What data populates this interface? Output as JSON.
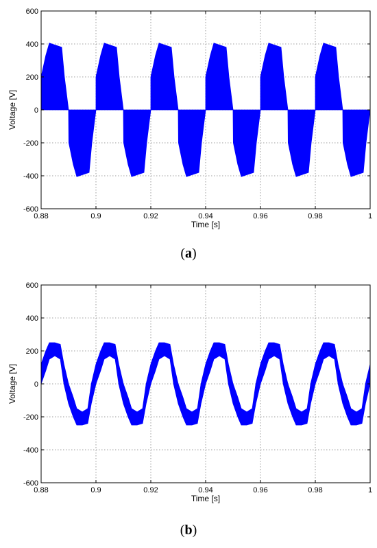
{
  "chart_data": [
    {
      "type": "area",
      "panel_label": "a",
      "xlabel": "Time [s]",
      "ylabel": "Voltage [V]",
      "xlim": [
        0.88,
        1.0
      ],
      "ylim": [
        -600,
        600
      ],
      "xticks": [
        "0.88",
        "0.9",
        "0.92",
        "0.94",
        "0.96",
        "0.98",
        "1"
      ],
      "yticks": [
        "-600",
        "-400",
        "-200",
        "0",
        "200",
        "400",
        "600"
      ],
      "grid": true,
      "color": "#0000ff",
      "period": 0.02,
      "phase_start": 0.88,
      "series": [
        {
          "values": [
            {
              "t": 0.0,
              "lo": 0,
              "hi": 200
            },
            {
              "t": 0.0017,
              "lo": 0,
              "hi": 330
            },
            {
              "t": 0.003,
              "lo": 0,
              "hi": 405
            },
            {
              "t": 0.0075,
              "lo": 0,
              "hi": 380
            },
            {
              "t": 0.0085,
              "lo": 0,
              "hi": 200
            },
            {
              "t": 0.01,
              "lo": 0,
              "hi": 0
            },
            {
              "t": 0.0101,
              "lo": -200,
              "hi": 0
            },
            {
              "t": 0.0117,
              "lo": -330,
              "hi": 0
            },
            {
              "t": 0.013,
              "lo": -405,
              "hi": 0
            },
            {
              "t": 0.0175,
              "lo": -380,
              "hi": 0
            },
            {
              "t": 0.0185,
              "lo": -200,
              "hi": 0
            },
            {
              "t": 0.02,
              "lo": 0,
              "hi": 0
            }
          ]
        }
      ]
    },
    {
      "type": "area",
      "panel_label": "b",
      "xlabel": "Time [s]",
      "ylabel": "Voltage [V]",
      "xlim": [
        0.88,
        1.0
      ],
      "ylim": [
        -600,
        600
      ],
      "xticks": [
        "0.88",
        "0.9",
        "0.92",
        "0.94",
        "0.96",
        "0.98",
        "1"
      ],
      "yticks": [
        "-600",
        "-400",
        "-200",
        "0",
        "200",
        "400",
        "600"
      ],
      "grid": true,
      "color": "#0000ff",
      "period": 0.02,
      "phase_start": 0.88,
      "series": [
        {
          "values": [
            {
              "t": 0.0,
              "lo": 0,
              "hi": 120
            },
            {
              "t": 0.0017,
              "lo": 80,
              "hi": 200
            },
            {
              "t": 0.003,
              "lo": 150,
              "hi": 250
            },
            {
              "t": 0.005,
              "lo": 170,
              "hi": 250
            },
            {
              "t": 0.007,
              "lo": 150,
              "hi": 240
            },
            {
              "t": 0.0083,
              "lo": 0,
              "hi": 120
            },
            {
              "t": 0.01,
              "lo": -120,
              "hi": 0
            },
            {
              "t": 0.0117,
              "lo": -200,
              "hi": -80
            },
            {
              "t": 0.013,
              "lo": -250,
              "hi": -150
            },
            {
              "t": 0.015,
              "lo": -250,
              "hi": -170
            },
            {
              "t": 0.017,
              "lo": -240,
              "hi": -150
            },
            {
              "t": 0.0183,
              "lo": -120,
              "hi": 0
            },
            {
              "t": 0.02,
              "lo": 0,
              "hi": 120
            }
          ]
        }
      ]
    }
  ]
}
